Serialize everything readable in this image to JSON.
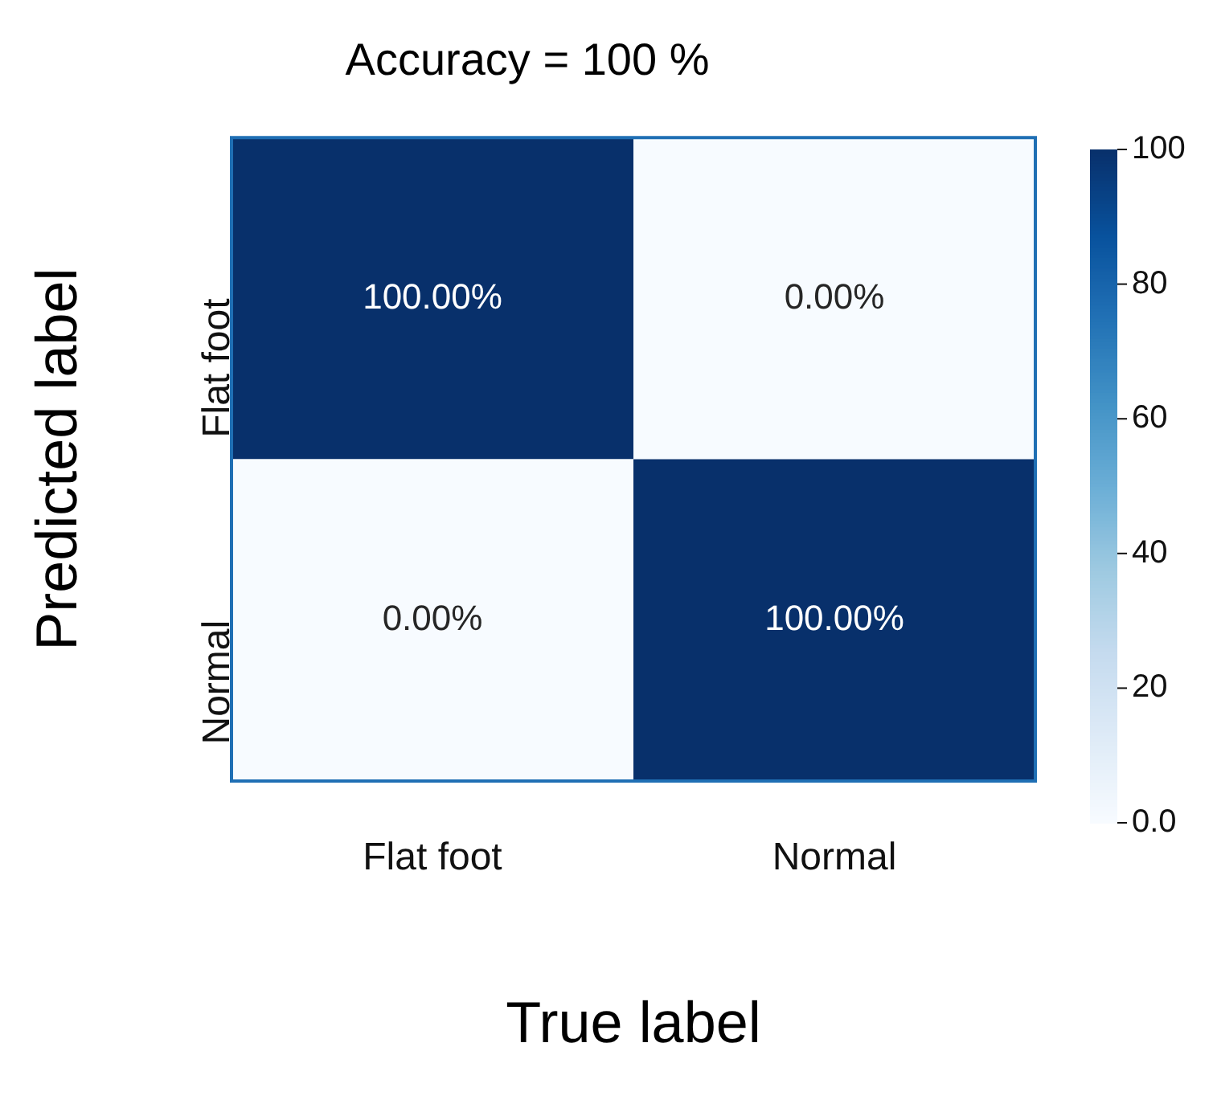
{
  "chart_data": {
    "type": "heatmap",
    "title": "Accuracy = 100 %",
    "xlabel": "True label",
    "ylabel": "Predicted label",
    "categories": [
      "Flat foot",
      "Normal"
    ],
    "y_categories": [
      "Flat foot",
      "Normal"
    ],
    "cells": [
      [
        100,
        0
      ],
      [
        0,
        100
      ]
    ],
    "cell_labels": [
      [
        "100.00%",
        "0.00%"
      ],
      [
        "0.00%",
        "100.00%"
      ]
    ],
    "clim": [
      0,
      100
    ],
    "cticks": [
      {
        "value": 0,
        "label": "0.0"
      },
      20,
      40,
      60,
      80,
      100
    ],
    "grid": false,
    "legend": false
  }
}
